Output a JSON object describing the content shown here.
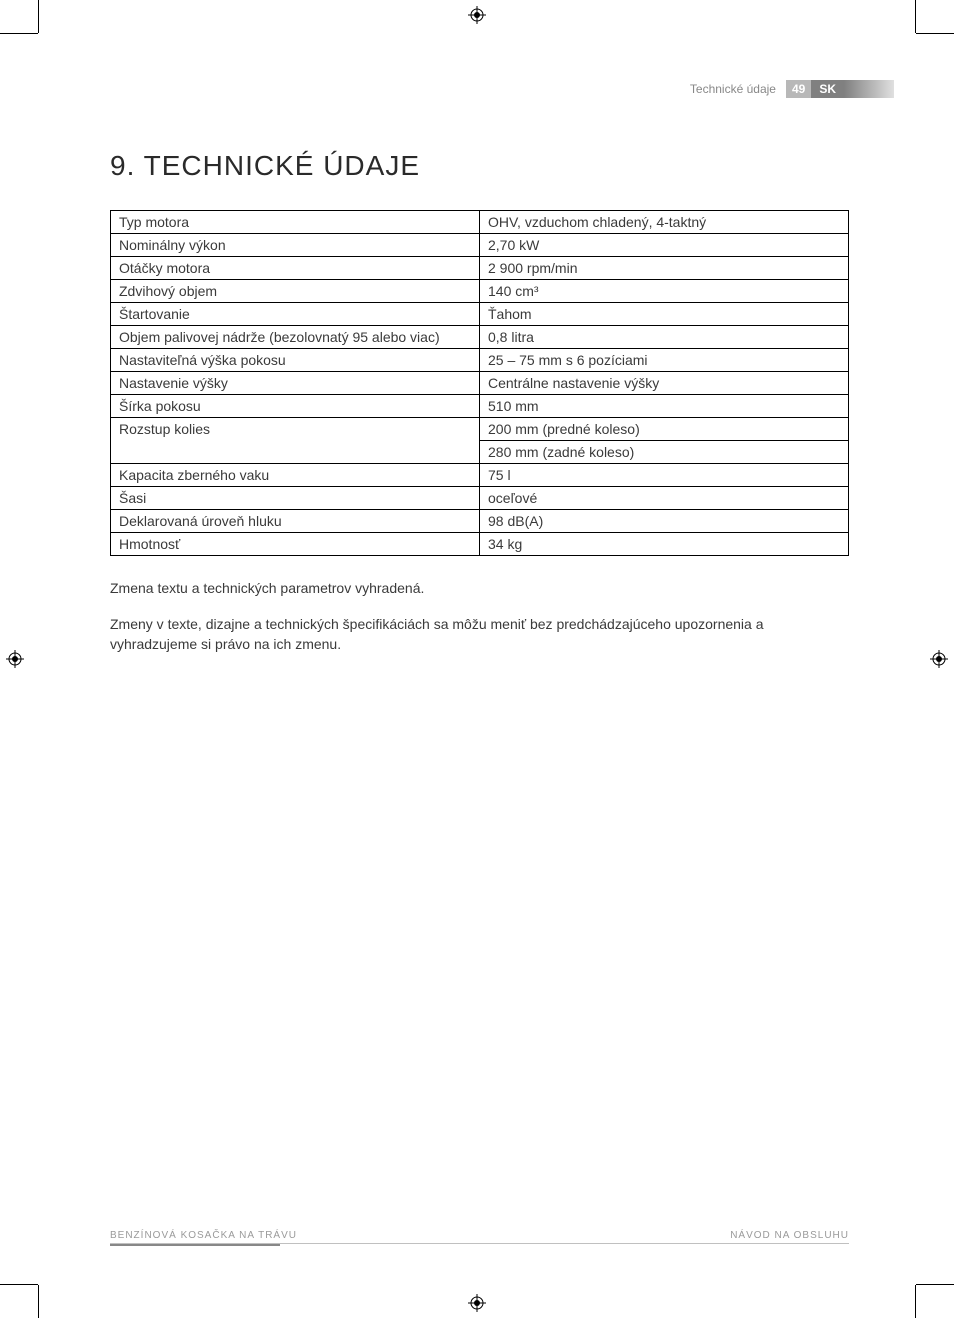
{
  "header": {
    "section_label": "Technické údaje",
    "page_number": "49",
    "lang_code": "SK"
  },
  "heading": "9. TECHNICKÉ ÚDAJE",
  "spec_table": {
    "rows": [
      {
        "label": "Typ motora",
        "value": "OHV, vzduchom chladený, 4-taktný"
      },
      {
        "label": "Nominálny výkon",
        "value": "2,70 kW"
      },
      {
        "label": "Otáčky motora",
        "value": "2 900 rpm/min"
      },
      {
        "label": "Zdvihový objem",
        "value": "140 cm³"
      },
      {
        "label": "Štartovanie",
        "value": "Ťahom"
      },
      {
        "label": "Objem palivovej nádrže (bezolovnatý 95 alebo viac)",
        "value": "0,8 litra"
      },
      {
        "label": "Nastaviteľná výška pokosu",
        "value": "25 – 75 mm s 6 pozíciami"
      },
      {
        "label": "Nastavenie výšky",
        "value": "Centrálne nastavenie výšky"
      },
      {
        "label": "Šírka pokosu",
        "value": "510 mm"
      },
      {
        "label": "Rozstup kolies",
        "value": "200 mm (predné koleso)"
      },
      {
        "label": "",
        "value": "280 mm (zadné koleso)"
      },
      {
        "label": "Kapacita zberného vaku",
        "value": "75 l"
      },
      {
        "label": "Šasi",
        "value": "oceľové"
      },
      {
        "label": "Deklarovaná úroveň hluku",
        "value": "98 dB(A)"
      },
      {
        "label": "Hmotnosť",
        "value": "34 kg"
      }
    ],
    "merge_rowspan_index": 9,
    "border_color": "#000000",
    "text_color": "#3a3a3a",
    "font_size": 14,
    "col1_width_pct": 48
  },
  "notes": {
    "note1": "Zmena textu a technických parametrov vyhradená.",
    "note2": "Zmeny v texte, dizajne a technických špecifikáciách sa môžu meniť bez predchádzajúceho upozornenia a vyhradzujeme si právo na ich zmenu."
  },
  "footer": {
    "left": "BENZÍNOVÁ KOSAČKA NA TRÁVU",
    "right": "NÁVOD NA OBSLUHU"
  },
  "colors": {
    "background": "#ffffff",
    "text": "#333333",
    "muted": "#9a9a9a",
    "header_label": "#888888",
    "page_num_bg": "#b8b8b8",
    "lang_bg": "#808080",
    "header_text_on_bg": "#ffffff"
  },
  "typography": {
    "heading_fontsize": 28,
    "heading_weight": 300,
    "body_fontsize": 14,
    "footer_fontsize": 10
  }
}
